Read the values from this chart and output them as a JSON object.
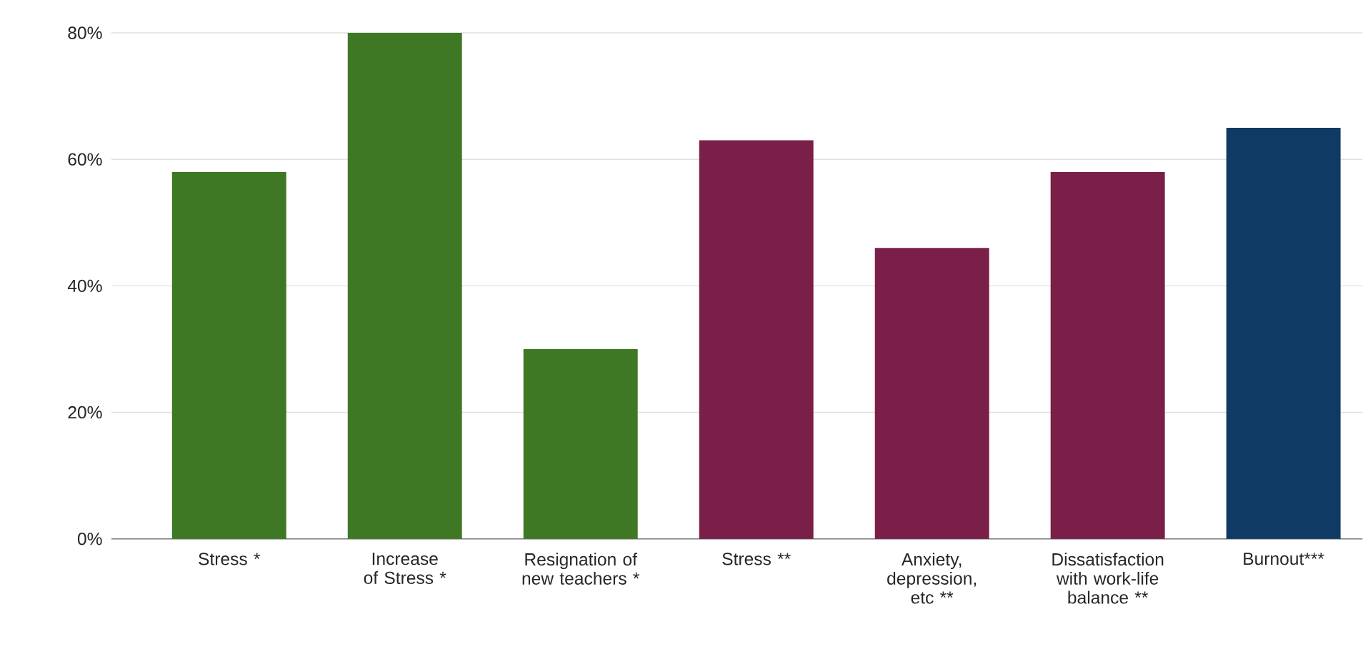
{
  "chart_data": {
    "type": "bar",
    "categories": [
      "Stress *",
      "Increase of Stress *",
      "Resignation of new teachers *",
      "Stress **",
      "Anxiety, depression, etc **",
      "Dissatisfaction with work-life balance **",
      "Burnout***"
    ],
    "values": [
      58,
      80,
      30,
      63,
      46,
      58,
      65
    ],
    "colors": [
      "#3f7824",
      "#3f7824",
      "#3f7824",
      "#7a1f48",
      "#7a1f48",
      "#7a1f48",
      "#0f3a63"
    ],
    "ylim": [
      0,
      80
    ],
    "yticks": [
      {
        "value": 0,
        "label": "0%"
      },
      {
        "value": 20,
        "label": "20%"
      },
      {
        "value": 40,
        "label": "40%"
      },
      {
        "value": 60,
        "label": "60%"
      },
      {
        "value": 80,
        "label": "80%"
      }
    ],
    "grid": "y"
  }
}
